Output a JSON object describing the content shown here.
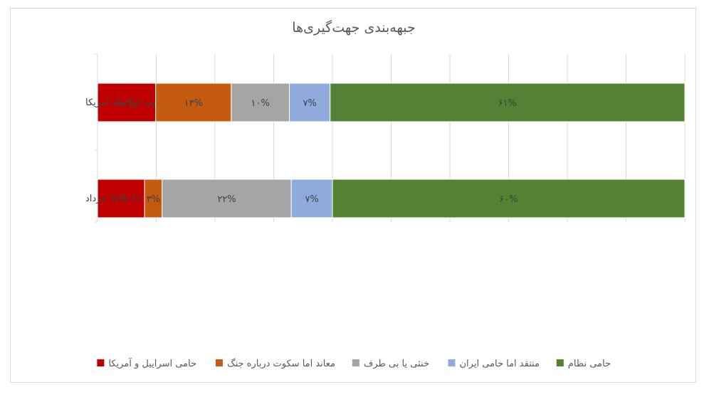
{
  "chart_data": {
    "type": "bar",
    "orientation": "horizontal",
    "stacked": "percent",
    "title": "جبهه‌بندی جهت‌گیری‌ها",
    "categories": [
      "بعد از حمله آمریکا",
      "۲۶ تا ۳۰ خرداد"
    ],
    "series": [
      {
        "name": "حامی اسراییل و آمریکا",
        "color": "#c00000",
        "values": [
          10,
          8
        ],
        "labels": [
          "۱۰%",
          "۸%"
        ]
      },
      {
        "name": "معاند اما سکوت درباره جنگ",
        "color": "#c55a11",
        "values": [
          13,
          3
        ],
        "labels": [
          "۱۳%",
          "۳%"
        ]
      },
      {
        "name": "خنثی یا بی طرف",
        "color": "#a5a5a5",
        "values": [
          10,
          22
        ],
        "labels": [
          "۱۰%",
          "۲۲%"
        ]
      },
      {
        "name": "منتقد اما حامی ایران",
        "color": "#8faadc",
        "values": [
          7,
          7
        ],
        "labels": [
          "۷%",
          "۷%"
        ]
      },
      {
        "name": "حامی نظام",
        "color": "#548235",
        "values": [
          61,
          60
        ],
        "labels": [
          "۶۱%",
          "۶۰%"
        ]
      }
    ],
    "xlim": [
      0,
      100
    ],
    "grid": true,
    "legend": "bottom"
  }
}
